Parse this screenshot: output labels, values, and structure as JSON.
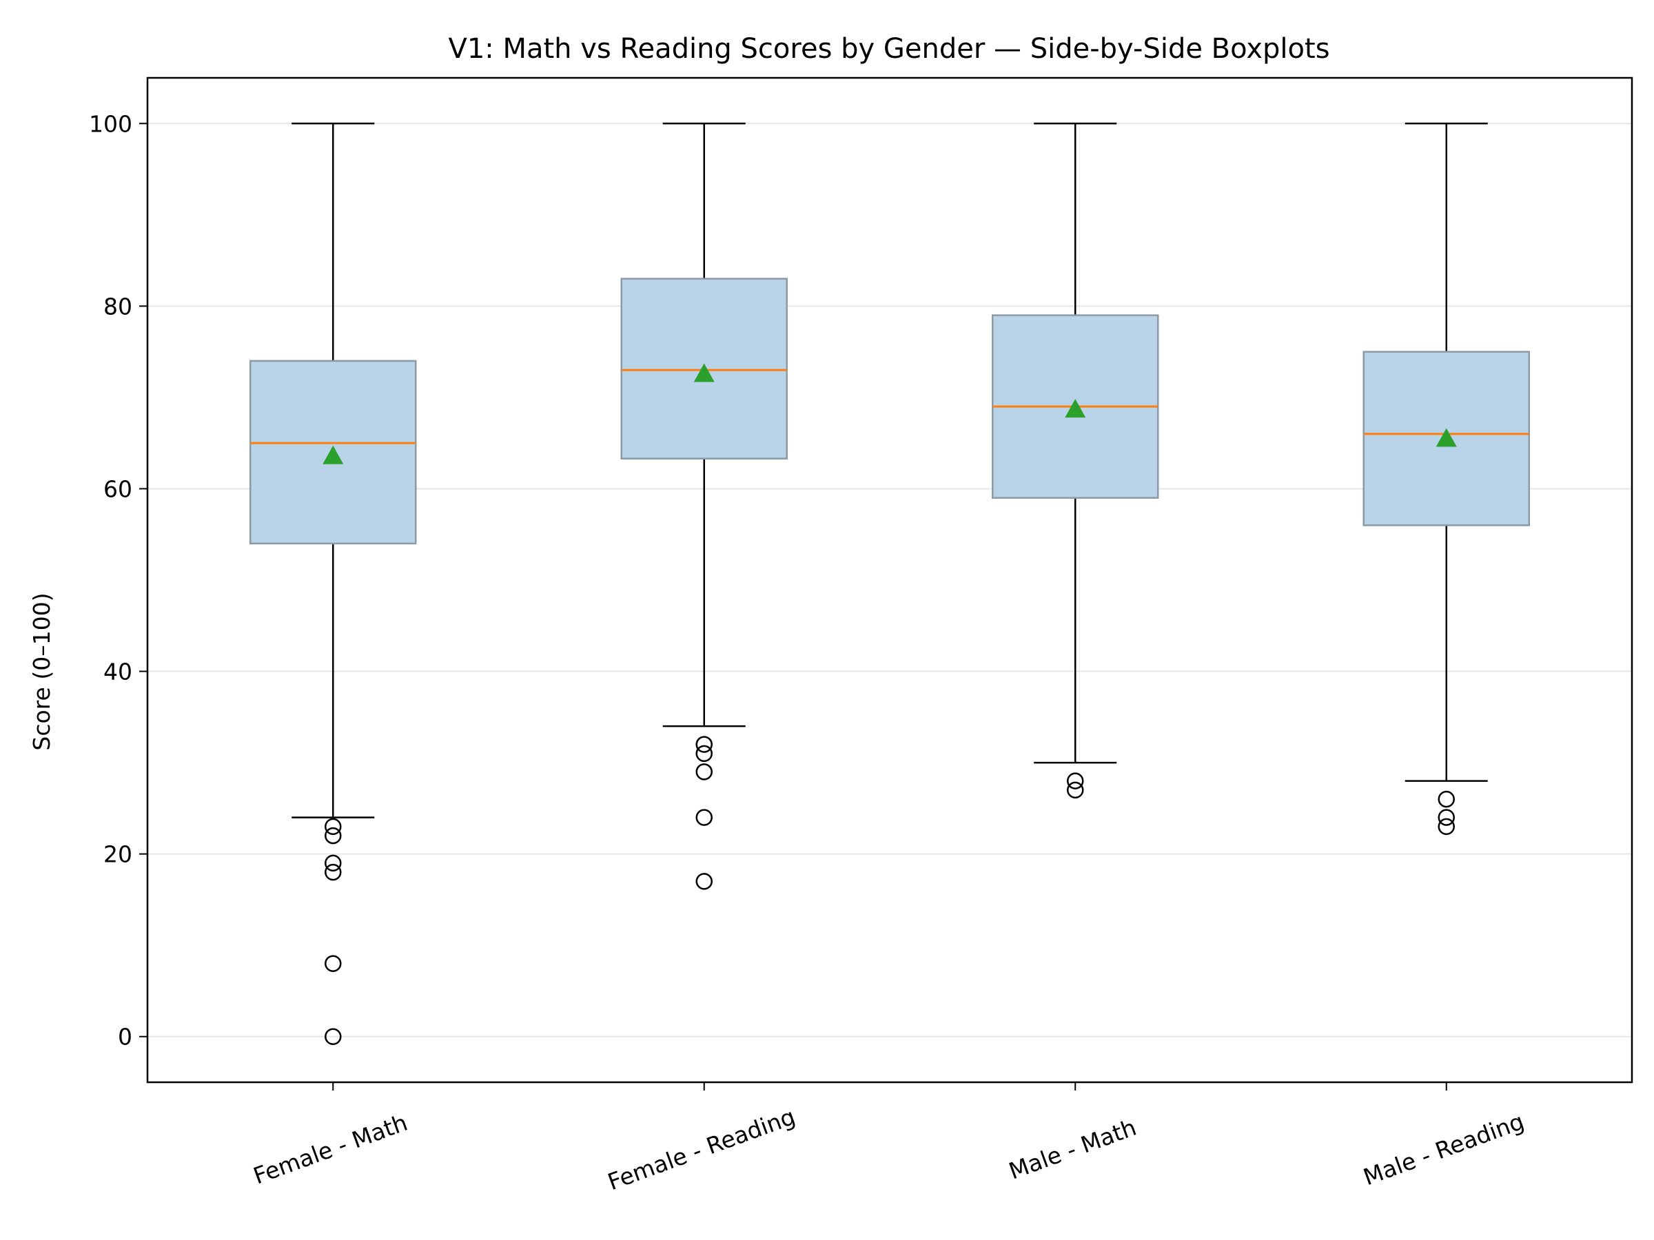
{
  "chart_data": {
    "type": "boxplot",
    "title": "V1: Math vs Reading Scores by Gender — Side-by-Side Boxplots",
    "xlabel": "",
    "ylabel": "Score (0–100)",
    "ylim": [
      -5,
      105
    ],
    "yticks": [
      0,
      20,
      40,
      60,
      80,
      100
    ],
    "grid": "horizontal",
    "categories": [
      "Female - Math",
      "Female - Reading",
      "Male - Math",
      "Male - Reading"
    ],
    "boxes": [
      {
        "whisker_low": 24,
        "q1": 54,
        "median": 65,
        "q3": 74,
        "whisker_high": 100,
        "mean": 63.6,
        "outliers": [
          23,
          22,
          19,
          18,
          8,
          0
        ]
      },
      {
        "whisker_low": 34,
        "q1": 63.3,
        "median": 73,
        "q3": 83,
        "whisker_high": 100,
        "mean": 72.6,
        "outliers": [
          32,
          31,
          29,
          24,
          17
        ]
      },
      {
        "whisker_low": 30,
        "q1": 59,
        "median": 69,
        "q3": 79,
        "whisker_high": 100,
        "mean": 68.7,
        "outliers": [
          28,
          27
        ]
      },
      {
        "whisker_low": 28,
        "q1": 56,
        "median": 66,
        "q3": 75,
        "whisker_high": 100,
        "mean": 65.5,
        "outliers": [
          26,
          24,
          23
        ]
      }
    ],
    "colors": {
      "box_fill": "#b9d4e8",
      "box_edge": "#8c9aa6",
      "median": "#ff7f0e",
      "mean": "#2ca02c",
      "grid": "#e6e6e6",
      "axis": "#000000"
    }
  }
}
